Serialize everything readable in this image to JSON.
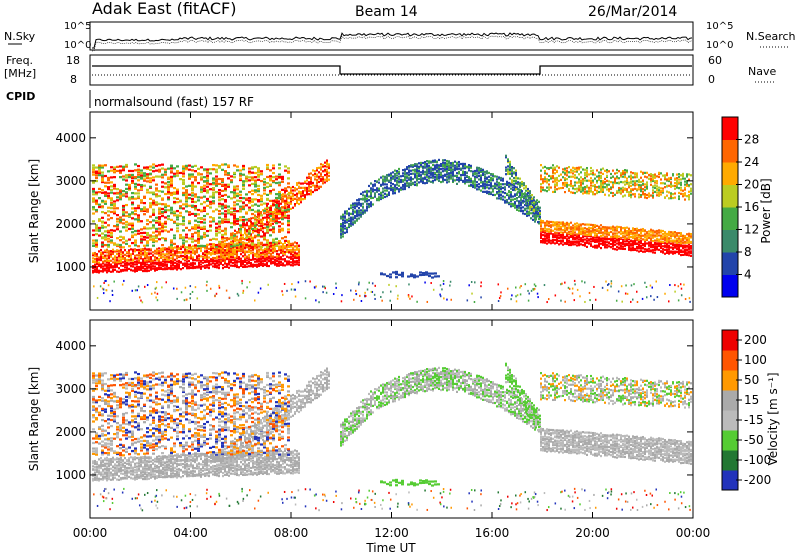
{
  "header": {
    "station": "Adak East (fitACF)",
    "beam": "Beam 14",
    "date": "26/Mar/2014"
  },
  "noise_panel": {
    "left_label": "N.Sky",
    "right_label": "N.Search",
    "ticks": [
      "10^5",
      "10^0"
    ]
  },
  "freq_panel": {
    "left_label_line1": "Freq.",
    "left_label_line2": "[MHz]",
    "ticks_left": [
      "18",
      "8"
    ],
    "right_label": "Nave",
    "ticks_right": [
      "60",
      "0"
    ]
  },
  "cpid": {
    "label": "CPID",
    "text": "normalsound (fast) 157 RF"
  },
  "colors": {
    "power": [
      "#0000ee",
      "#2244aa",
      "#3a8a6a",
      "#44aa44",
      "#bbcc22",
      "#ffaa00",
      "#ff6600",
      "#ff0000"
    ],
    "velocity": [
      "#2233bb",
      "#227733",
      "#55cc33",
      "#bbbbbb",
      "#aaaaaa",
      "#ff9900",
      "#ff5500",
      "#ee0000"
    ]
  },
  "chart_data": [
    {
      "type": "heatmap",
      "ylabel": "Slant Range [km]",
      "yticks": [
        "1000",
        "2000",
        "3000",
        "4000"
      ],
      "ylim": [
        0,
        4600
      ],
      "colorbar": {
        "label": "Power [dB]",
        "ticks": [
          "4",
          "8",
          "12",
          "16",
          "20",
          "24",
          "28"
        ],
        "range": [
          0,
          32
        ]
      }
    },
    {
      "type": "heatmap",
      "ylabel": "Slant Range [km]",
      "yticks": [
        "1000",
        "2000",
        "3000",
        "4000"
      ],
      "ylim": [
        0,
        4600
      ],
      "colorbar": {
        "label": "Velocity [m s⁻¹]",
        "ticks": [
          "200",
          "100",
          "50",
          "15",
          "-15",
          "-50",
          "-100",
          "-200"
        ],
        "range": [
          -250,
          250
        ]
      }
    }
  ],
  "x_axis": {
    "label": "Time UT",
    "ticks": [
      "00:00",
      "04:00",
      "08:00",
      "12:00",
      "16:00",
      "20:00",
      "00:00"
    ]
  }
}
